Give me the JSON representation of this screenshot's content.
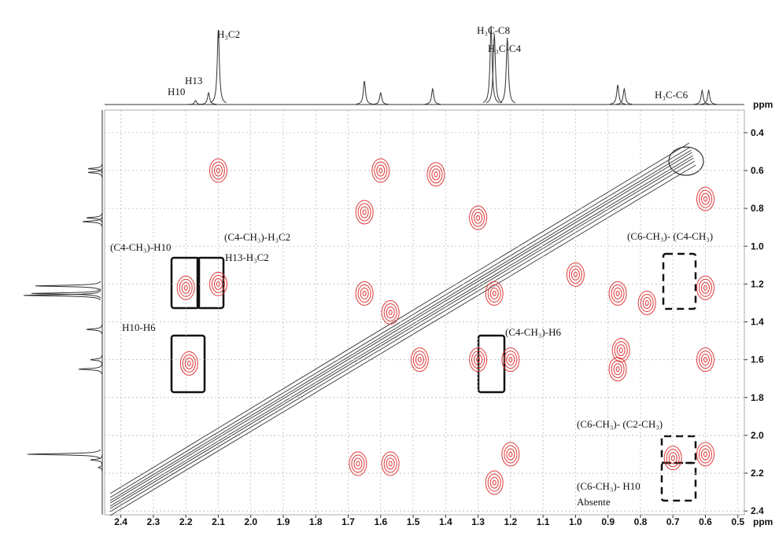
{
  "chart_data": {
    "type": "contour",
    "x_inverted": true,
    "y_inverted": true,
    "xlim": [
      2.45,
      0.48
    ],
    "ylim": [
      0.28,
      2.42
    ],
    "xticks": [
      2.4,
      2.3,
      2.2,
      2.1,
      {
        "value": 2,
        "label": "2.0"
      },
      1.9,
      1.8,
      1.7,
      1.6,
      1.5,
      1.4,
      1.3,
      1.2,
      1.1,
      {
        "value": 1,
        "label": "1.0"
      },
      0.9,
      0.8,
      0.7,
      0.6,
      0.5
    ],
    "yticks": [
      0.4,
      0.6,
      0.8,
      {
        "value": 1,
        "label": "1.0"
      },
      1.2,
      1.4,
      1.6,
      1.8,
      {
        "value": 2,
        "label": "2.0"
      },
      2.2,
      2.4
    ],
    "grid": true,
    "xlabel": "ppm",
    "ylabel": "ppm",
    "projection_label": "ppm",
    "cross_peaks": {
      "color": "#e03a3a",
      "x": [
        2.1,
        2.2,
        2.1,
        2.19,
        1.65,
        1.6,
        1.43,
        1.65,
        1.57,
        1.67,
        1.57,
        1.48,
        1.3,
        1.25,
        1.2,
        1.3,
        1.2,
        1.0,
        0.87,
        0.86,
        0.78,
        0.87,
        0.6,
        0.6,
        0.6,
        0.7,
        1.25,
        0.6
      ],
      "y": [
        0.6,
        1.22,
        1.2,
        1.62,
        0.82,
        0.6,
        0.62,
        1.25,
        1.35,
        2.15,
        2.15,
        1.6,
        0.85,
        1.25,
        1.6,
        1.6,
        2.1,
        1.15,
        1.25,
        1.55,
        1.3,
        1.65,
        0.75,
        1.22,
        1.6,
        2.12,
        2.25,
        2.1
      ]
    },
    "projection": {
      "color": "#333333",
      "x": [
        2.17,
        2.13,
        2.1,
        1.65,
        1.6,
        1.44,
        1.26,
        1.25,
        1.21,
        0.87,
        0.85,
        0.61,
        0.59
      ],
      "intensity": [
        5,
        15,
        95,
        30,
        15,
        20,
        100,
        90,
        85,
        25,
        20,
        18,
        18
      ]
    },
    "annotations": [
      "H₃C2",
      "H13",
      "H10",
      "H₃C-C8",
      "H₃C-C4",
      "H₃C-C6",
      "(C4-CH₃)-H10",
      "(C4-CH₃)-H₃C2",
      "H13-H₃C2",
      "H10-H6",
      "(C4-CH₃)-H6",
      "(C6-CH₃)- (C4-CH₃)",
      "(C6-CH₃)- (C2-CH₃)",
      "(C6-CH₃)- H10",
      "Absente"
    ]
  }
}
